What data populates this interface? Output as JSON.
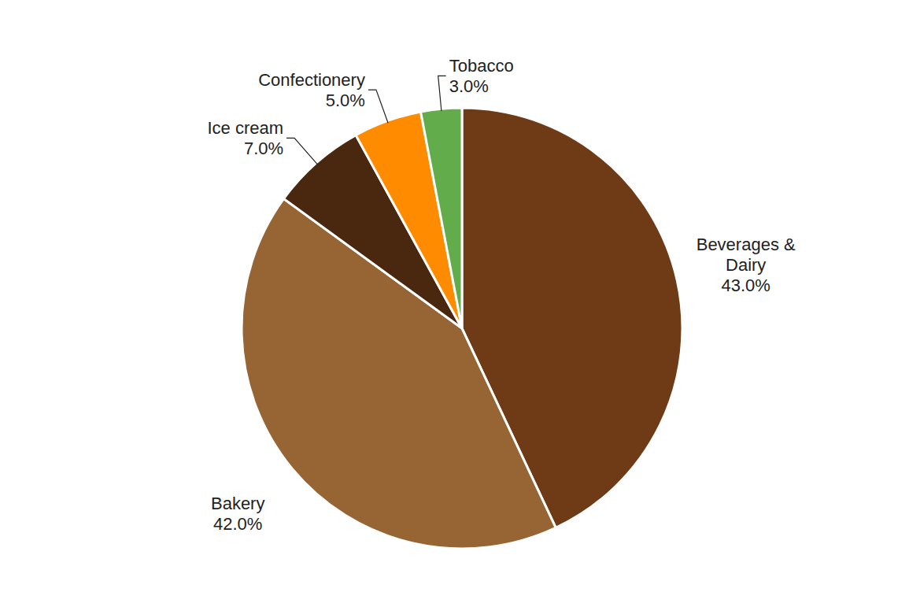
{
  "chart_data": {
    "type": "pie",
    "categories": [
      "Beverages & Dairy",
      "Bakery",
      "Ice cream",
      "Confectionery",
      "Tobacco"
    ],
    "values": [
      43,
      42,
      7,
      5,
      3
    ],
    "value_labels": [
      "43.0%",
      "42.0%",
      "7.0%",
      "5.0%",
      "3.0%"
    ],
    "colors": [
      "#6e3b16",
      "#976433",
      "#4a2810",
      "#ff8c00",
      "#62ac4c"
    ],
    "data_labels": true
  }
}
